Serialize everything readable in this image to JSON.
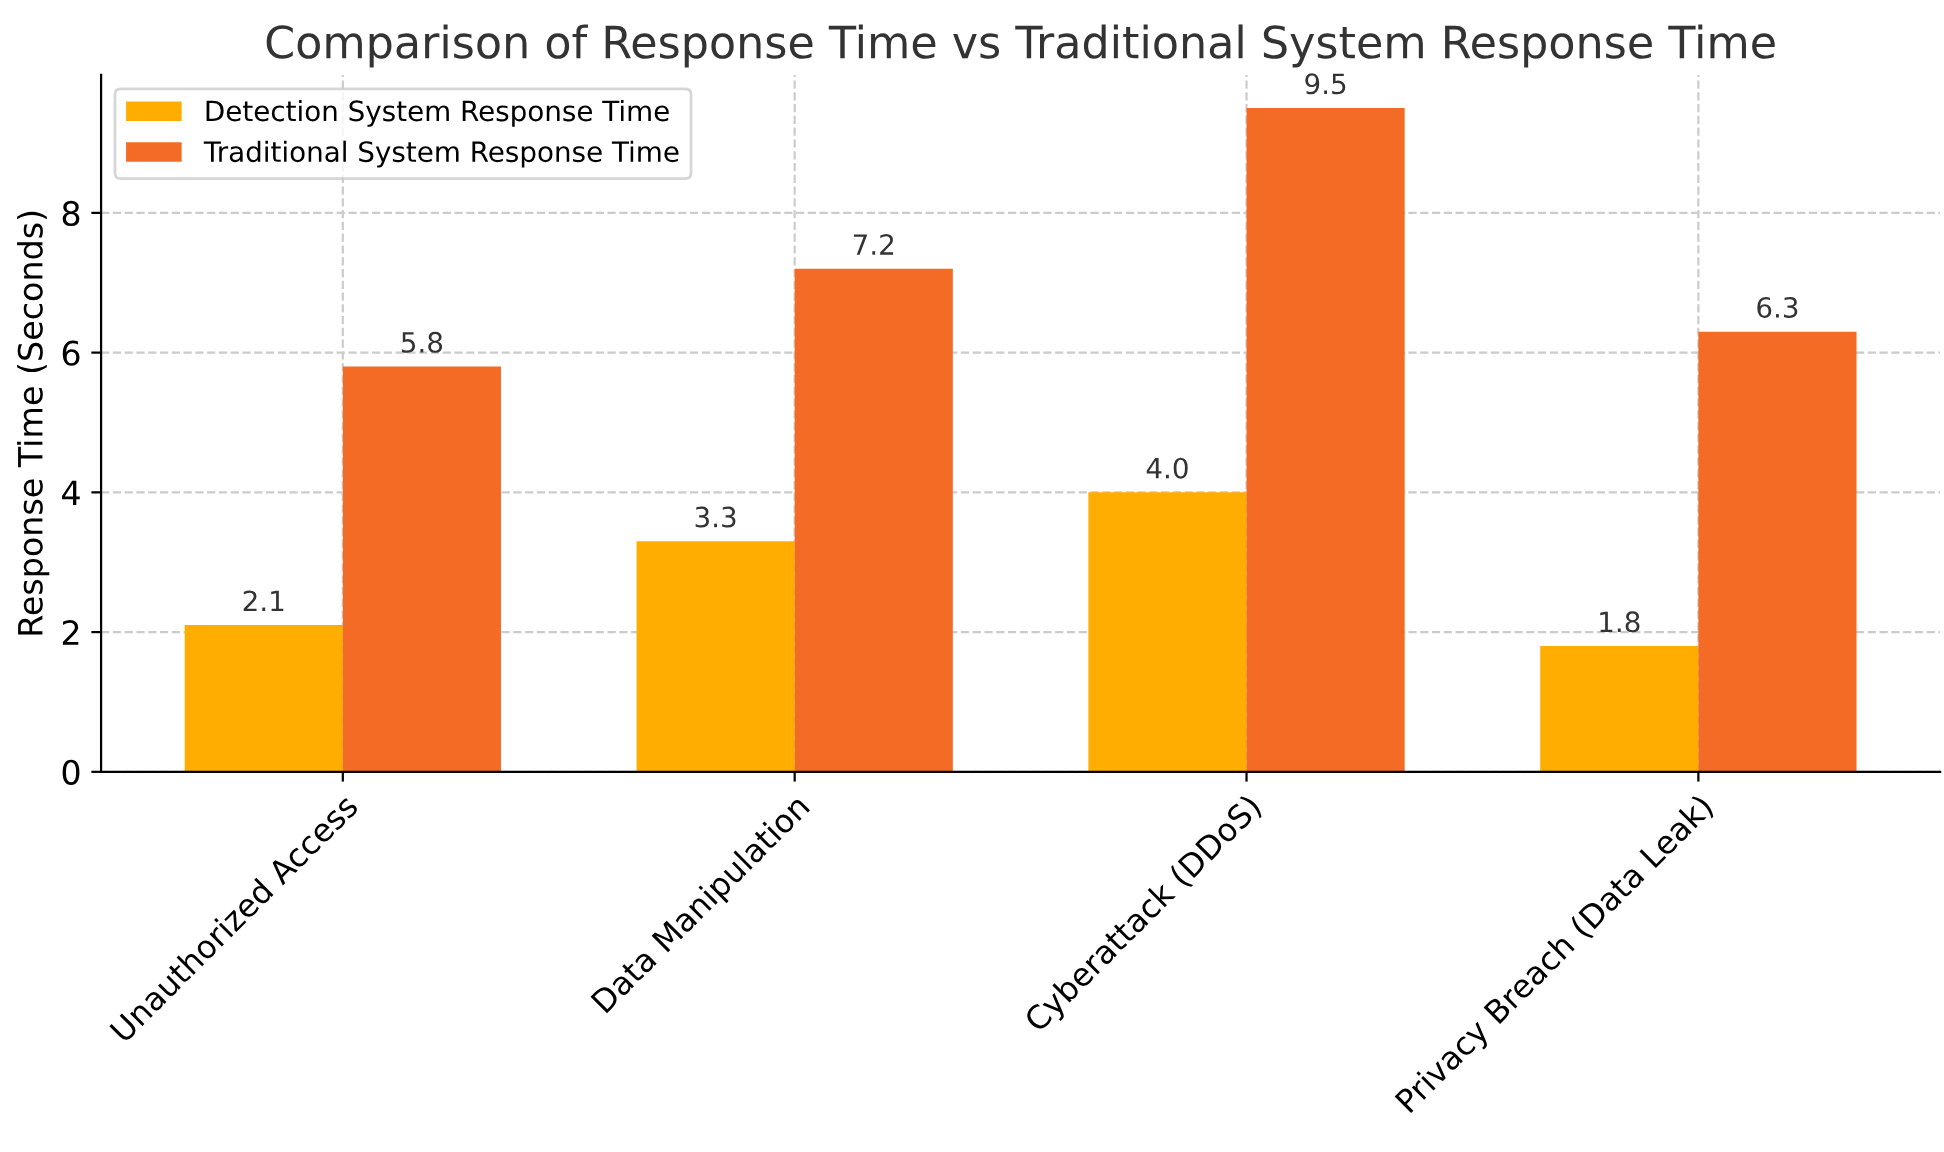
{
  "chart_data": {
    "type": "bar",
    "title": "Comparison of Response Time vs Traditional System Response Time",
    "ylabel": "Response Time (Seconds)",
    "categories": [
      "Unauthorized Access",
      "Data Manipulation",
      "Cyberattack (DDoS)",
      "Privacy Breach (Data Leak)"
    ],
    "series": [
      {
        "name": "Detection System Response Time",
        "color": "#ffad00",
        "values": [
          2.1,
          3.3,
          4.0,
          1.8
        ],
        "value_labels": [
          "2.1",
          "3.3",
          "4.0",
          "1.8"
        ]
      },
      {
        "name": "Traditional System Response Time",
        "color": "#f36b24",
        "values": [
          5.8,
          7.2,
          9.5,
          6.3
        ],
        "value_labels": [
          "5.8",
          "7.2",
          "9.5",
          "6.3"
        ]
      }
    ],
    "ylim": [
      0,
      9.975
    ],
    "yticks": [
      0,
      2,
      4,
      6,
      8
    ],
    "grid": true,
    "legend": "top left"
  }
}
